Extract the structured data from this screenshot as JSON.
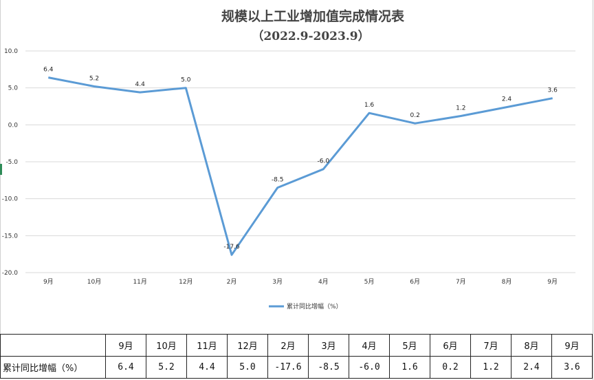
{
  "chart_data": {
    "type": "line",
    "title": "规模以上工业增加值完成情况表",
    "subtitle": "（2022.9-2023.9）",
    "categories": [
      "9月",
      "10月",
      "11月",
      "12月",
      "2月",
      "3月",
      "4月",
      "5月",
      "6月",
      "7月",
      "8月",
      "9月"
    ],
    "series": [
      {
        "name": "累计同比增幅（%）",
        "values": [
          6.4,
          5.2,
          4.4,
          5.0,
          -17.6,
          -8.5,
          -6.0,
          1.6,
          0.2,
          1.2,
          2.4,
          3.6
        ],
        "color": "#5b9bd5"
      }
    ],
    "yticks": [
      "10.0",
      "5.0",
      "0.0",
      "-5.0",
      "-10.0",
      "-15.0",
      "-20.0"
    ],
    "ylim": [
      -20,
      10
    ],
    "grid": true,
    "legend_position": "bottom"
  },
  "table": {
    "row_label": "累计同比增幅（%）",
    "headers": [
      "9月",
      "10月",
      "11月",
      "12月",
      "2月",
      "3月",
      "4月",
      "5月",
      "6月",
      "7月",
      "8月",
      "9月"
    ],
    "values": [
      "6.4",
      "5.2",
      "4.4",
      "5.0",
      "-17.6",
      "-8.5",
      "-6.0",
      "1.6",
      "0.2",
      "1.2",
      "2.4",
      "3.6"
    ]
  }
}
